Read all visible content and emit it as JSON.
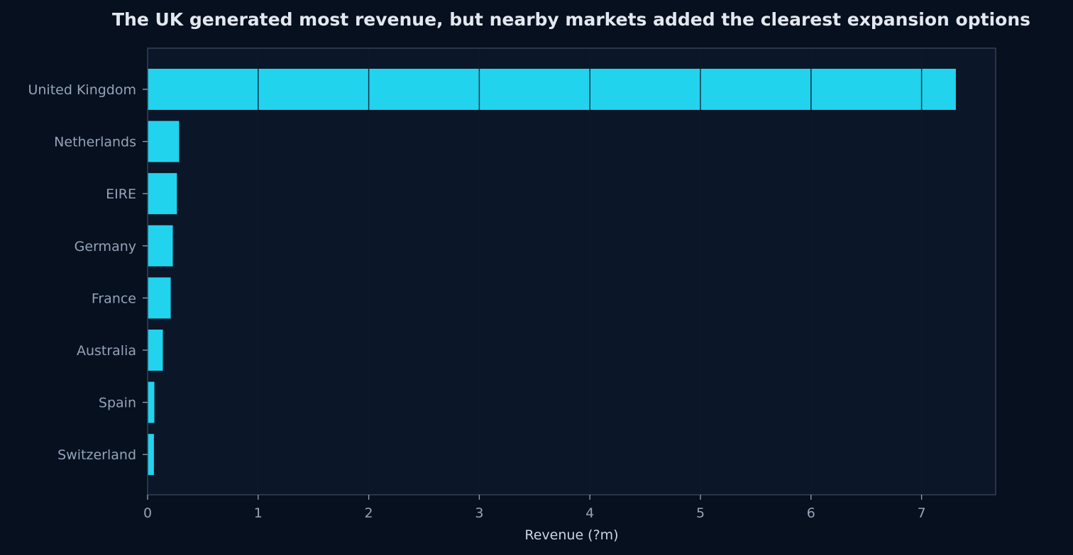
{
  "chart_data": {
    "type": "bar",
    "orientation": "horizontal",
    "title": "The UK generated most revenue, but nearby markets added the clearest expansion options",
    "xlabel": "Revenue (?m)",
    "ylabel": "",
    "categories": [
      "United Kingdom",
      "Netherlands",
      "EIRE",
      "Germany",
      "France",
      "Australia",
      "Spain",
      "Switzerland"
    ],
    "values": [
      7.31,
      0.285,
      0.265,
      0.228,
      0.209,
      0.138,
      0.061,
      0.057
    ],
    "xlim": [
      0,
      7.67
    ],
    "xticks": [
      "0",
      "1",
      "2",
      "3",
      "4",
      "5",
      "6",
      "7"
    ],
    "grid": "vertical",
    "legend": "none",
    "colors": {
      "background": "#07101e",
      "plot_background": "#0b1628",
      "bar": "#22d3ee",
      "grid": "#1e2b3c",
      "frame": "#334155",
      "title": "#e2e8f0",
      "tick_text": "#94a3b8",
      "axis_label_text": "#cbd5e1"
    }
  }
}
